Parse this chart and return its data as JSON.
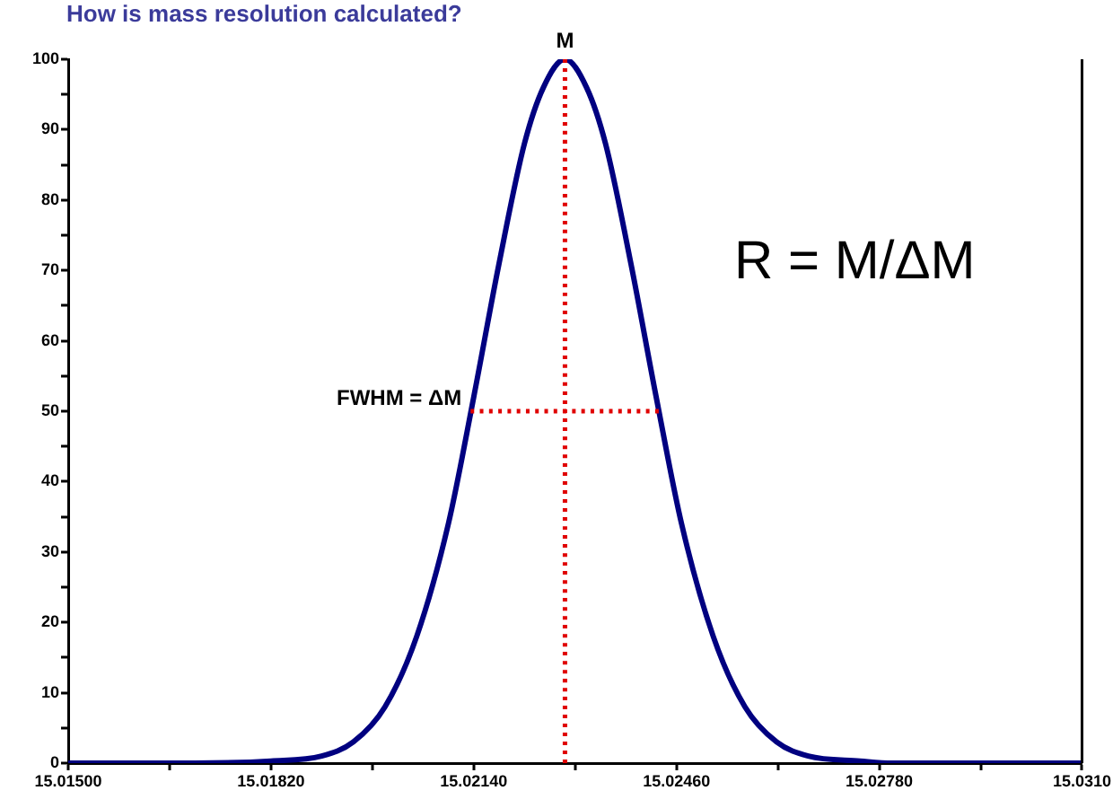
{
  "chart_data": {
    "type": "line",
    "title": "How is mass resolution calculated?",
    "series": [
      {
        "color": "#000080",
        "line_style": "solid",
        "x": [
          15.015,
          15.017,
          15.0182,
          15.019,
          15.0195,
          15.02,
          15.0205,
          15.021,
          15.0214,
          15.0218,
          15.0222,
          15.0225,
          15.02284,
          15.02318,
          15.02348,
          15.02388,
          15.02428,
          15.02468,
          15.02518,
          15.02568,
          15.02618,
          15.02668,
          15.0275,
          15.028,
          15.031
        ],
        "values": [
          0,
          0,
          0.3,
          1,
          3,
          8,
          18,
          34,
          52,
          71,
          88,
          96,
          100,
          96,
          88,
          71,
          52,
          34,
          18,
          8,
          3,
          1,
          0.3,
          0,
          0
        ]
      },
      {
        "color": "#e00000",
        "line_style": "dotted",
        "x": [
          15.02284,
          15.02284
        ],
        "values": [
          0,
          100
        ]
      },
      {
        "color": "#e00000",
        "line_style": "dotted",
        "x": [
          15.02135,
          15.02432
        ],
        "values": [
          50,
          50
        ]
      }
    ],
    "xlim": [
      15.015,
      15.031
    ],
    "xticks": [
      {
        "value": 15.015,
        "label": "15.01500"
      },
      {
        "value": 15.0166,
        "label": null
      },
      {
        "value": 15.0182,
        "label": "15.01820"
      },
      {
        "value": 15.0198,
        "label": null
      },
      {
        "value": 15.0214,
        "label": "15.02140"
      },
      {
        "value": 15.023,
        "label": null
      },
      {
        "value": 15.0246,
        "label": "15.02460"
      },
      {
        "value": 15.0262,
        "label": null
      },
      {
        "value": 15.0278,
        "label": "15.02780"
      },
      {
        "value": 15.0294,
        "label": null
      },
      {
        "value": 15.031,
        "label": "15.0310"
      }
    ],
    "ylim": [
      0,
      100
    ],
    "yticks": [
      0,
      {
        "value": 5,
        "label": null
      },
      10,
      {
        "value": 15,
        "label": null
      },
      20,
      {
        "value": 25,
        "label": null
      },
      30,
      {
        "value": 35,
        "label": null
      },
      40,
      {
        "value": 45,
        "label": null
      },
      50,
      {
        "value": 55,
        "label": null
      },
      60,
      {
        "value": 65,
        "label": null
      },
      70,
      {
        "value": 75,
        "label": null
      },
      80,
      {
        "value": 85,
        "label": null
      },
      90,
      {
        "value": 95,
        "label": null
      },
      100
    ],
    "annotations": [
      {
        "text": "M",
        "x": 15.02284,
        "y": 100
      },
      {
        "text": "FWHM = ΔM",
        "x": 15.02135,
        "y": 50
      },
      "R = M/ΔM"
    ],
    "grid": false,
    "legend": false,
    "marker": "none"
  }
}
